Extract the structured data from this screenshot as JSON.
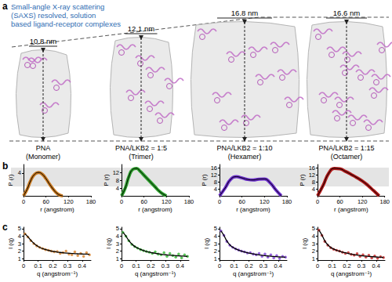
{
  "panel_a": {
    "letter": "a",
    "caption": [
      "Small-angle X-ray scattering",
      "(SAXS) resolved, solution",
      "based ligand-receptor complexes"
    ],
    "complexes": [
      {
        "size": "10.8 nm",
        "label": "PNA",
        "state": "(Monomer)"
      },
      {
        "size": "12.1 nm",
        "label": "PNA/LKB2 = 1:5",
        "state": "(Trimer)"
      },
      {
        "size": "16.8 nm",
        "label": "PNA/LKB2 = 1:10",
        "state": "(Hexamer)"
      },
      {
        "size": "16.6 nm",
        "label": "PNA/LKB2 = 1:15",
        "state": "(Octamer)"
      }
    ]
  },
  "panel_b": {
    "letter": "b"
  },
  "panel_c": {
    "letter": "c"
  },
  "chart_data": [
    {
      "type": "line",
      "color": "#c8781e",
      "xlabel": "r (angstrom)",
      "ylabel": "P (r)",
      "x": [
        0,
        10,
        20,
        30,
        40,
        50,
        60,
        70,
        80,
        90,
        100,
        105
      ],
      "values": [
        0,
        1.2,
        2.8,
        3.8,
        4.1,
        3.8,
        3.0,
        2.0,
        1.1,
        0.4,
        0.05,
        0
      ],
      "xlim": [
        0,
        180
      ],
      "xticks": [
        0,
        60,
        120,
        180
      ],
      "ylim": [
        0,
        5.5
      ],
      "yticks": [
        4
      ]
    },
    {
      "type": "line",
      "color": "#2ca02c",
      "xlabel": "r (angstrom)",
      "ylabel": "P (r)",
      "x": [
        0,
        10,
        20,
        30,
        40,
        50,
        60,
        70,
        80,
        90,
        100,
        110,
        120
      ],
      "values": [
        0,
        4,
        10,
        13.5,
        14,
        12.5,
        10.5,
        8.5,
        6.5,
        4.5,
        2.5,
        1,
        0
      ],
      "xlim": [
        0,
        180
      ],
      "xticks": [
        0,
        60,
        120,
        180
      ],
      "ylim": [
        0,
        16
      ],
      "yticks": [
        4,
        8,
        12
      ]
    },
    {
      "type": "line",
      "color": "#6a2ccc",
      "xlabel": "r (angstrom)",
      "ylabel": "P (r)",
      "x": [
        0,
        15,
        30,
        45,
        60,
        75,
        90,
        105,
        120,
        135,
        150,
        165
      ],
      "values": [
        0,
        4.5,
        9.5,
        11,
        10.3,
        9.4,
        9.1,
        9.6,
        9.7,
        7.5,
        3.5,
        0
      ],
      "xlim": [
        0,
        180
      ],
      "xticks": [
        0,
        60,
        120,
        180
      ],
      "ylim": [
        0,
        18
      ],
      "yticks": [
        4,
        8,
        12,
        16
      ]
    },
    {
      "type": "line",
      "color": "#b01818",
      "xlabel": "r (angstrom)",
      "ylabel": "P (r)",
      "x": [
        0,
        15,
        30,
        45,
        60,
        75,
        90,
        105,
        120,
        135,
        150,
        165
      ],
      "values": [
        0,
        6,
        13,
        15.8,
        15.5,
        14,
        12.3,
        10.5,
        8.5,
        6,
        3,
        0
      ],
      "xlim": [
        0,
        180
      ],
      "xticks": [
        0,
        60,
        120,
        180
      ],
      "ylim": [
        0,
        18
      ],
      "yticks": [
        4,
        8,
        12,
        16
      ]
    },
    {
      "type": "scatter",
      "color": "#d9822b",
      "xlabel": "q (angstrom⁻¹)",
      "ylabel": "I (q)",
      "x": [
        0.01,
        0.03,
        0.05,
        0.07,
        0.09,
        0.11,
        0.13,
        0.15,
        0.17,
        0.19,
        0.21,
        0.23,
        0.25,
        0.27,
        0.29,
        0.31,
        0.33,
        0.35,
        0.37,
        0.39,
        0.41,
        0.43,
        0.45
      ],
      "values": [
        4.3,
        3.9,
        3.4,
        3.0,
        2.7,
        2.5,
        2.35,
        2.2,
        2.1,
        2.0,
        1.9,
        1.95,
        1.7,
        1.8,
        2.0,
        1.6,
        1.5,
        1.9,
        1.4,
        1.7,
        1.3,
        1.8,
        1.5
      ],
      "fit": [
        4.3,
        3.9,
        3.45,
        3.05,
        2.75,
        2.5,
        2.33,
        2.2,
        2.1,
        2.0,
        1.93,
        1.87,
        1.82,
        1.78,
        1.74,
        1.71,
        1.68,
        1.66,
        1.64,
        1.62,
        1.6,
        1.59,
        1.58
      ],
      "xlim": [
        0,
        0.46
      ],
      "xticks": [
        0,
        0.1,
        0.2,
        0.3,
        0.4
      ],
      "ylim": [
        0.8,
        5.2
      ],
      "yticks": [
        1,
        2,
        3,
        4,
        5
      ]
    },
    {
      "type": "scatter",
      "color": "#33b833",
      "xlabel": "q (angstrom⁻¹)",
      "ylabel": "I (q)",
      "x": [
        0.01,
        0.03,
        0.05,
        0.07,
        0.09,
        0.11,
        0.13,
        0.15,
        0.17,
        0.19,
        0.21,
        0.23,
        0.25,
        0.27,
        0.29,
        0.31,
        0.33,
        0.35,
        0.37,
        0.39,
        0.41,
        0.43,
        0.45
      ],
      "values": [
        4.5,
        4.0,
        3.4,
        2.9,
        2.6,
        2.4,
        2.2,
        2.05,
        1.95,
        1.85,
        1.7,
        1.9,
        1.6,
        1.5,
        1.8,
        1.3,
        1.7,
        1.4,
        1.2,
        1.6,
        1.1,
        1.5,
        1.3
      ],
      "fit": [
        4.5,
        4.0,
        3.4,
        2.95,
        2.62,
        2.4,
        2.22,
        2.07,
        1.95,
        1.85,
        1.77,
        1.7,
        1.64,
        1.58,
        1.53,
        1.49,
        1.45,
        1.42,
        1.39,
        1.36,
        1.34,
        1.32,
        1.3
      ],
      "xlim": [
        0,
        0.46
      ],
      "xticks": [
        0,
        0.1,
        0.2,
        0.3,
        0.4
      ],
      "ylim": [
        0.8,
        5.2
      ],
      "yticks": [
        1,
        2,
        3,
        4,
        5
      ]
    },
    {
      "type": "scatter",
      "color": "#7a3cd6",
      "xlabel": "q (angstrom⁻¹)",
      "ylabel": "I (q)",
      "x": [
        0.01,
        0.03,
        0.05,
        0.07,
        0.09,
        0.11,
        0.13,
        0.15,
        0.17,
        0.19,
        0.21,
        0.23,
        0.25,
        0.27,
        0.29,
        0.31,
        0.33,
        0.35,
        0.37,
        0.39,
        0.41,
        0.43,
        0.45
      ],
      "values": [
        4.7,
        4.1,
        3.3,
        2.8,
        2.5,
        2.3,
        2.15,
        2.0,
        1.9,
        1.75,
        1.8,
        1.6,
        1.5,
        1.7,
        1.3,
        1.6,
        1.2,
        1.5,
        1.1,
        1.4,
        1.0,
        1.3,
        1.2
      ],
      "fit": [
        4.7,
        4.1,
        3.35,
        2.85,
        2.52,
        2.3,
        2.13,
        2.0,
        1.89,
        1.79,
        1.7,
        1.62,
        1.55,
        1.49,
        1.44,
        1.39,
        1.35,
        1.31,
        1.28,
        1.25,
        1.22,
        1.2,
        1.18
      ],
      "xlim": [
        0,
        0.46
      ],
      "xticks": [
        0,
        0.1,
        0.2,
        0.3,
        0.4
      ],
      "ylim": [
        0.8,
        5.2
      ],
      "yticks": [
        1,
        2,
        3,
        4,
        5
      ]
    },
    {
      "type": "scatter",
      "color": "#c21e1e",
      "xlabel": "q (angstrom⁻¹)",
      "ylabel": "I (q)",
      "x": [
        0.01,
        0.03,
        0.05,
        0.07,
        0.09,
        0.11,
        0.13,
        0.15,
        0.17,
        0.19,
        0.21,
        0.23,
        0.25,
        0.27,
        0.29,
        0.31,
        0.33,
        0.35,
        0.37,
        0.39,
        0.41,
        0.43,
        0.45
      ],
      "values": [
        4.8,
        4.1,
        3.3,
        2.8,
        2.45,
        2.25,
        2.1,
        2.0,
        1.85,
        1.7,
        1.8,
        1.55,
        1.45,
        1.65,
        1.3,
        1.5,
        1.2,
        1.45,
        1.1,
        1.35,
        1.05,
        1.25,
        1.15
      ],
      "fit": [
        4.8,
        4.15,
        3.35,
        2.85,
        2.5,
        2.28,
        2.11,
        1.98,
        1.87,
        1.77,
        1.68,
        1.6,
        1.53,
        1.47,
        1.42,
        1.37,
        1.33,
        1.29,
        1.26,
        1.23,
        1.2,
        1.18,
        1.16
      ],
      "xlim": [
        0,
        0.46
      ],
      "xticks": [
        0,
        0.1,
        0.2,
        0.3,
        0.4
      ],
      "ylim": [
        0.8,
        5.2
      ],
      "yticks": [
        1,
        2,
        3,
        4,
        5
      ]
    }
  ]
}
